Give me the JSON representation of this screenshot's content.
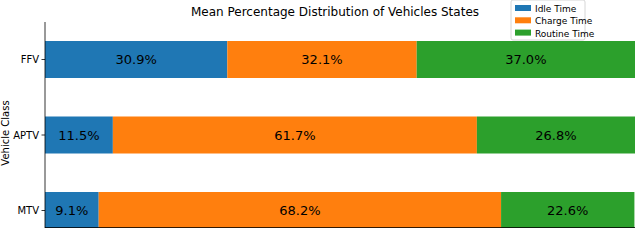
{
  "chart_data": {
    "type": "bar",
    "orientation": "horizontal",
    "stacked": true,
    "title": "Mean Percentage Distribution of Vehicles States",
    "y_label": "Vehicle Class",
    "categories": [
      "FFV",
      "APTV",
      "MTV"
    ],
    "series": [
      {
        "name": "Idle Time",
        "color": "#1f77b4",
        "values": [
          30.9,
          11.5,
          9.1
        ],
        "value_labels": [
          "30.9%",
          "11.5%",
          "9.1%"
        ]
      },
      {
        "name": "Charge Time",
        "color": "#ff7f0e",
        "values": [
          32.1,
          61.7,
          68.2
        ],
        "value_labels": [
          "32.1%",
          "61.7%",
          "68.2%"
        ]
      },
      {
        "name": "Routine Time",
        "color": "#2ca02c",
        "values": [
          37.0,
          26.8,
          22.6
        ],
        "value_labels": [
          "37.0%",
          "26.8%",
          "22.6%"
        ]
      }
    ],
    "xlim": [
      0,
      100
    ],
    "tick_labels": "y",
    "data_labels": true,
    "legend": "upper right"
  }
}
